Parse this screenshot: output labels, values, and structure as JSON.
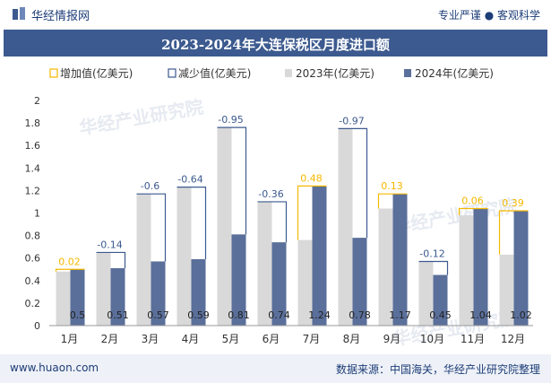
{
  "header": {
    "site_name": "华经情报网",
    "tagline": "专业严谨 ● 客观科学"
  },
  "chart_data": {
    "type": "bar",
    "title": "2023-2024年大连保税区月度进口额",
    "categories": [
      "1月",
      "2月",
      "3月",
      "4月",
      "5月",
      "6月",
      "7月",
      "8月",
      "9月",
      "10月",
      "11月",
      "12月"
    ],
    "series": [
      {
        "name": "2023年(亿美元)",
        "color": "#d9d9d9",
        "values": [
          0.48,
          0.65,
          1.17,
          1.23,
          1.76,
          1.1,
          0.76,
          1.75,
          1.04,
          0.57,
          0.98,
          0.63
        ]
      },
      {
        "name": "2024年(亿美元)",
        "color": "#5a6f9a",
        "values": [
          0.5,
          0.51,
          0.57,
          0.59,
          0.81,
          0.74,
          1.24,
          0.78,
          1.17,
          0.45,
          1.04,
          1.02
        ]
      }
    ],
    "changes": [
      0.02,
      -0.14,
      -0.6,
      -0.64,
      -0.95,
      -0.36,
      0.48,
      -0.97,
      0.13,
      -0.12,
      0.06,
      0.39
    ],
    "change_labels": [
      "0.02",
      "-0.14",
      "-0.6",
      "-0.64",
      "-0.95",
      "-0.36",
      "0.48",
      "-0.97",
      "0.13",
      "-0.12",
      "0.06",
      "0.39"
    ],
    "bar_labels": [
      "0.5",
      "0.51",
      "0.57",
      "0.59",
      "0.81",
      "0.74",
      "1.24",
      "0.78",
      "1.17",
      "0.45",
      "1.04",
      "1.02"
    ],
    "legend": {
      "increase": "增加值(亿美元)",
      "decrease": "减少值(亿美元)",
      "y2023": "2023年(亿美元)",
      "y2024": "2024年(亿美元)",
      "placement": "top"
    },
    "colors": {
      "increase": "#f5b800",
      "decrease": "#3c5a8f",
      "title_bar": "#3c5a8f"
    },
    "ylim": [
      0,
      2
    ],
    "yticks": [
      "0",
      "0.2",
      "0.4",
      "0.6",
      "0.8",
      "1",
      "1.2",
      "1.4",
      "1.6",
      "1.8",
      "2"
    ],
    "grid": false
  },
  "watermark": "华经产业研究院",
  "footer": {
    "url": "www.huaon.com",
    "source": "数据来源：中国海关，华经产业研究院整理"
  }
}
